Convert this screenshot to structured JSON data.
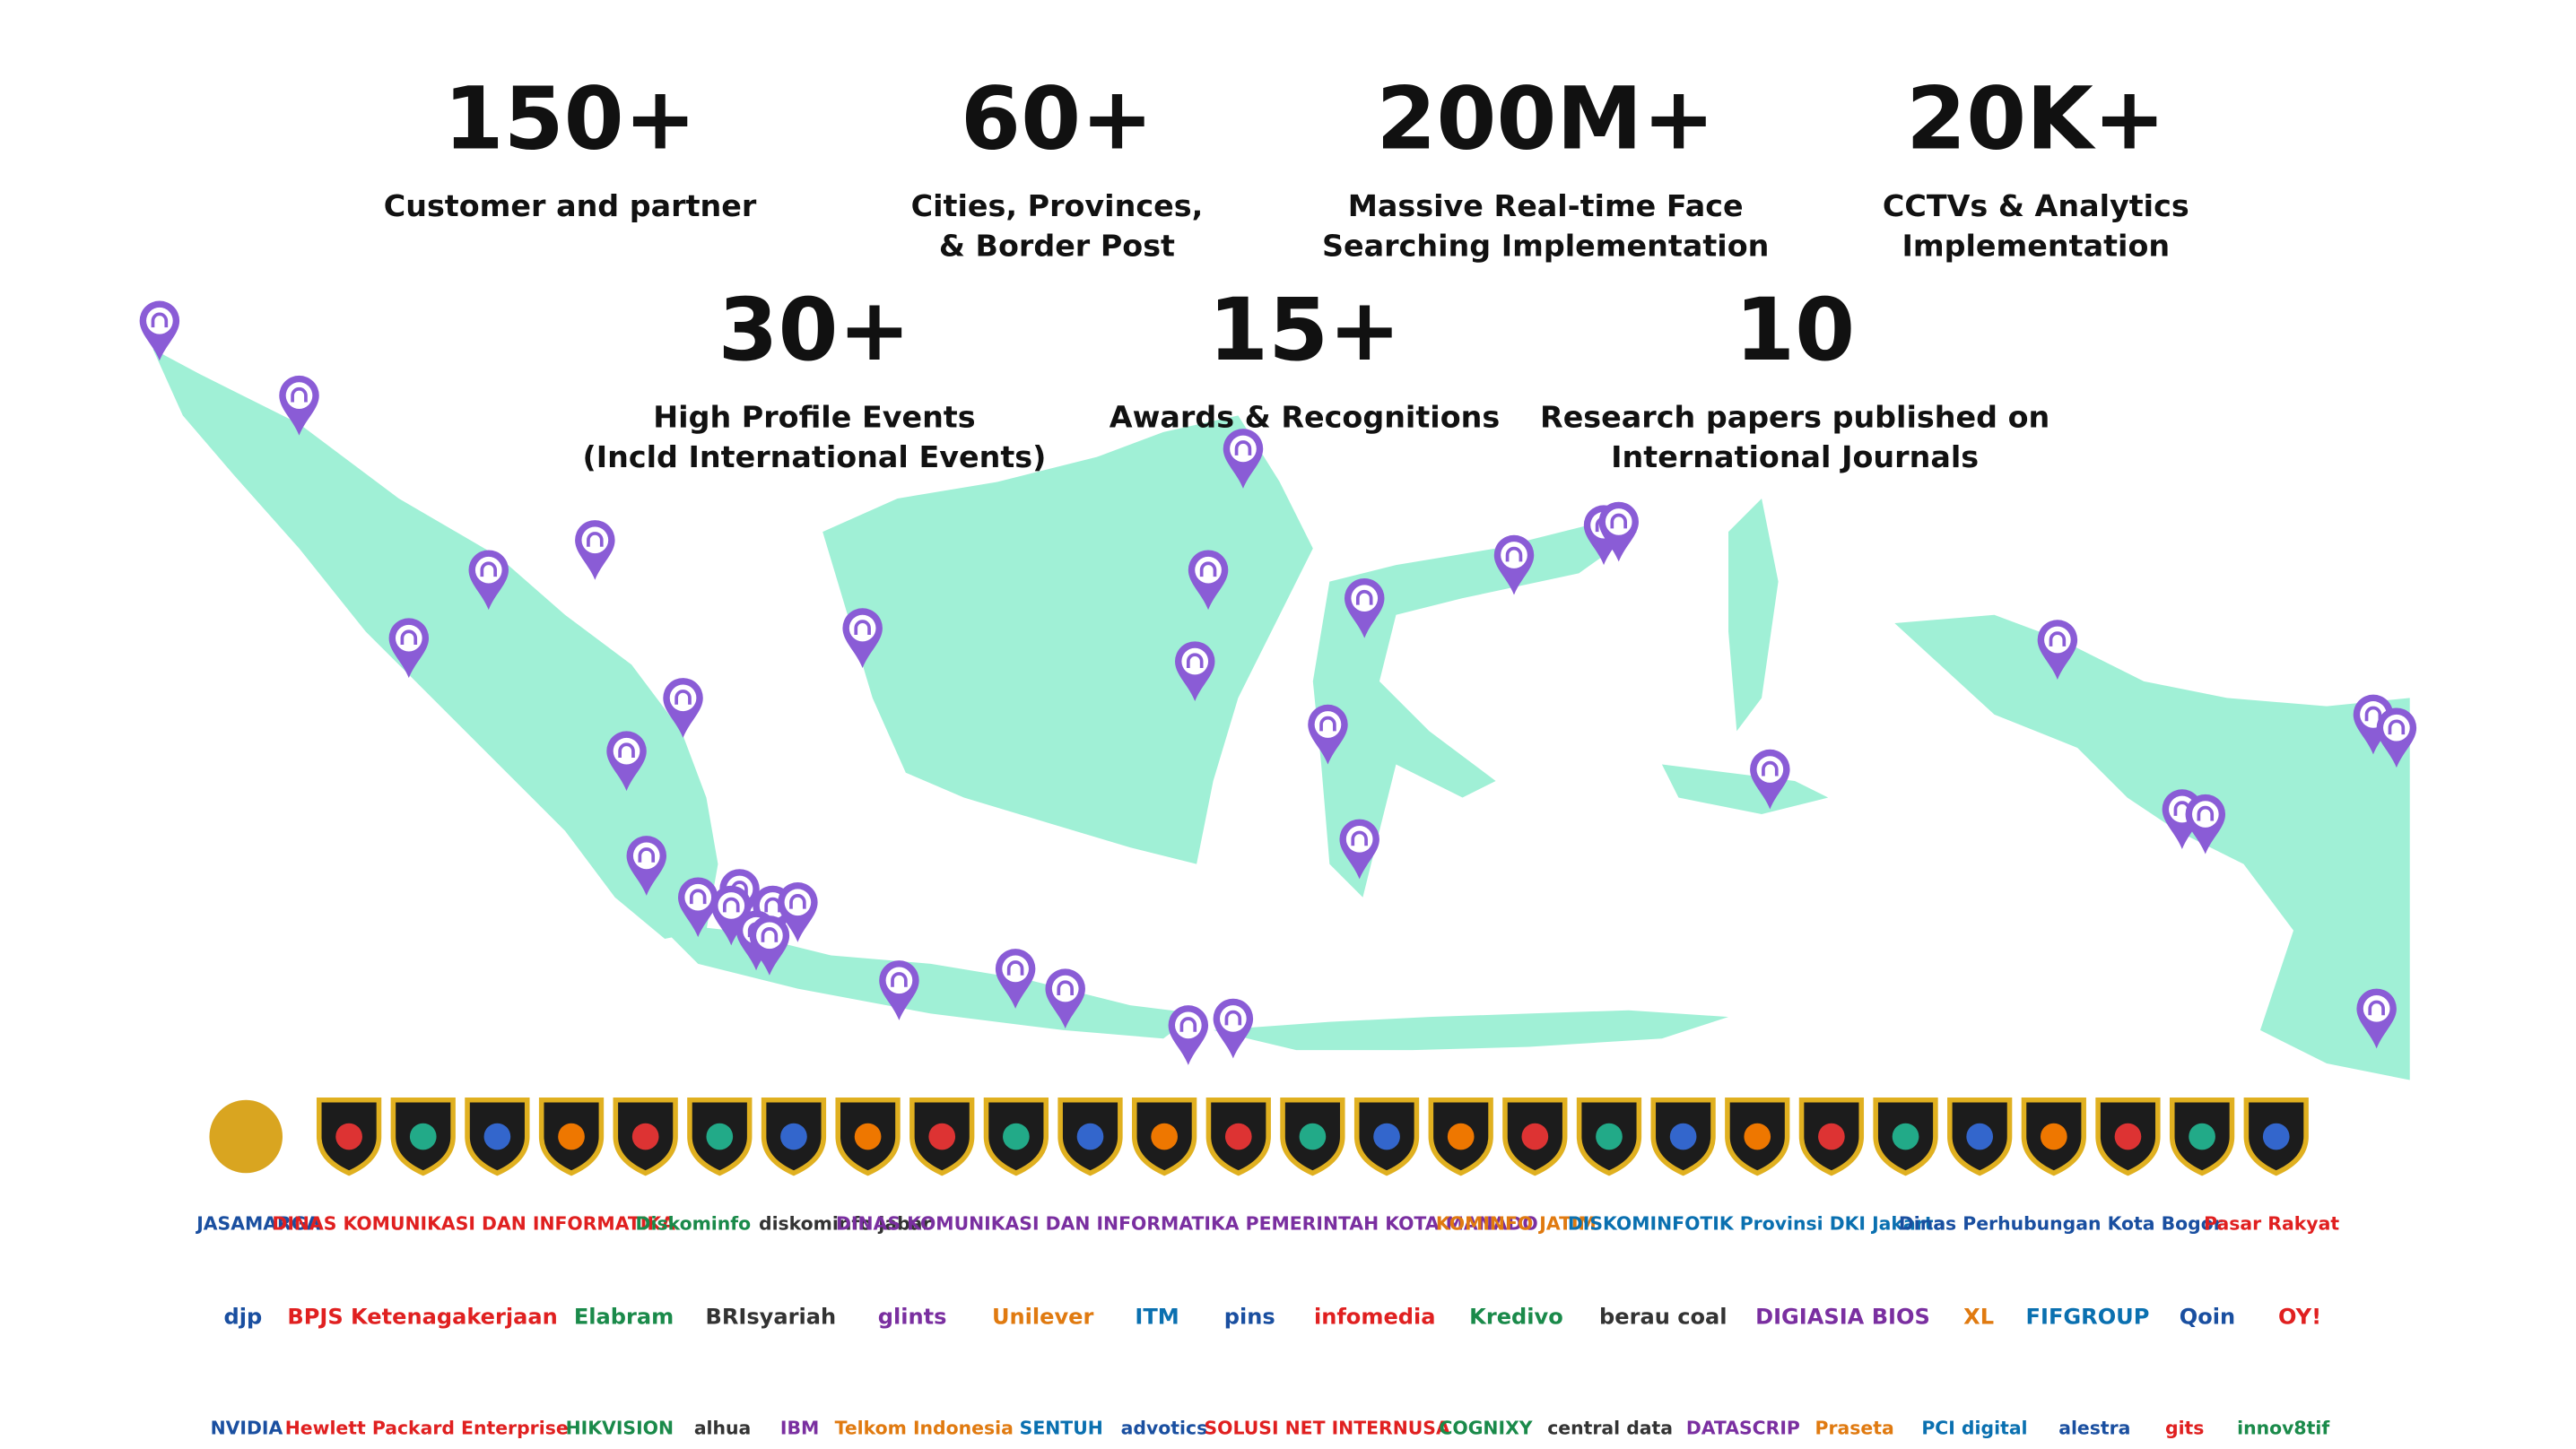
{
  "stats": [
    {
      "value": "150+",
      "label": [
        "Customer and partner"
      ]
    },
    {
      "value": "60+",
      "label": [
        "Cities, Provinces,",
        "& Border Post"
      ]
    },
    {
      "value": "200M+",
      "label": [
        "Massive Real-time Face",
        "Searching Implementation"
      ]
    },
    {
      "value": "20K+",
      "label": [
        "CCTVs & Analytics",
        "Implementation"
      ]
    },
    {
      "value": "30+",
      "label": [
        "High Profile Events",
        "(Incld International Events)"
      ]
    },
    {
      "value": "15+",
      "label": [
        "Awards & Recognitions"
      ]
    },
    {
      "value": "10",
      "label": [
        "Research papers published on",
        "International Journals"
      ]
    }
  ],
  "logos": {
    "row2": [
      "JASAMARGA",
      "DINAS KOMUNIKASI DAN INFORMATIKA",
      "Diskominfo",
      "diskominfo jabar",
      "DINAS KOMUNIKASI DAN INFORMATIKA PEMERINTAH KOTA MANADO",
      "KOMINFO JATIM",
      "DISKOMINFOTIK Provinsi DKI Jakarta",
      "Dinas Perhubungan Kota Bogor",
      "Pasar Rakyat"
    ],
    "row3": [
      "djp",
      "BPJS Ketenagakerjaan",
      "Elabram",
      "BRIsyariah",
      "glints",
      "Unilever",
      "ITM",
      "pins",
      "infomedia",
      "Kredivo",
      "berau coal",
      "DIGIASIA BIOS",
      "XL",
      "FIFGROUP",
      "Qoin",
      "OY!"
    ],
    "row4": [
      "NVIDIA",
      "Hewlett Packard Enterprise",
      "HIKVISION",
      "alhua",
      "IBM",
      "Telkom Indonesia",
      "SENTUH",
      "advotics",
      "SOLUSI NET INTERNUSA",
      "COGNIXY",
      "central data",
      "DATASCRIP",
      "Praseta",
      "PCI digital",
      "alestra",
      "gits",
      "innov8tif"
    ]
  }
}
